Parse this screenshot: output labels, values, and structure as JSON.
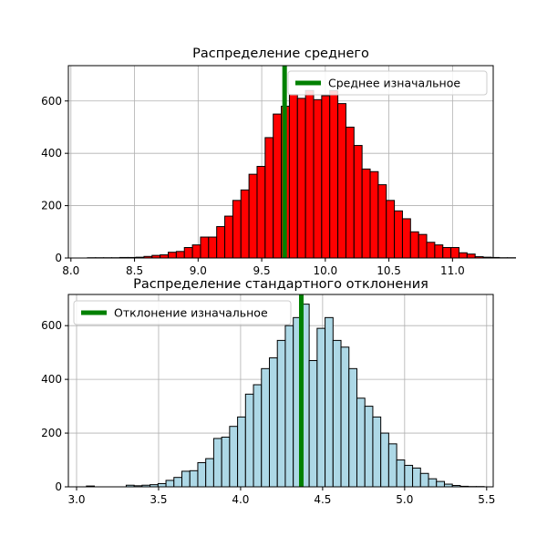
{
  "chart_data": [
    {
      "type": "bar",
      "title": "Распределение среднего",
      "xlabel": "",
      "ylabel": "",
      "xlim": [
        7.98,
        11.32
      ],
      "ylim": [
        0,
        735
      ],
      "xticks": [
        8.0,
        8.5,
        9.0,
        9.5,
        10.0,
        10.5,
        11.0
      ],
      "xtick_labels": [
        "8.0",
        "8.5",
        "9.0",
        "9.5",
        "10.0",
        "10.5",
        "11.0"
      ],
      "yticks": [
        0,
        200,
        400,
        600
      ],
      "ytick_labels": [
        "0",
        "200",
        "400",
        "600"
      ],
      "grid": true,
      "bar_color": "#ff0000",
      "edge_color": "#000000",
      "bin_start": 8.13,
      "bin_width": 0.0635,
      "values": [
        1,
        1,
        1,
        1,
        2,
        2,
        3,
        6,
        10,
        12,
        22,
        25,
        40,
        50,
        80,
        80,
        120,
        160,
        220,
        260,
        320,
        350,
        460,
        550,
        580,
        625,
        610,
        640,
        605,
        620,
        640,
        590,
        500,
        430,
        340,
        330,
        280,
        220,
        180,
        150,
        100,
        90,
        60,
        50,
        40,
        40,
        20,
        15,
        5,
        3,
        2,
        1,
        1
      ],
      "vline": {
        "x": 9.68,
        "color": "#008000",
        "label": "Среднее изначальное"
      },
      "legend_position": "top-right"
    },
    {
      "type": "bar",
      "title": "Распределение стандартного отклонения",
      "xlabel": "",
      "ylabel": "",
      "xlim": [
        2.95,
        5.54
      ],
      "ylim": [
        0,
        716
      ],
      "xticks": [
        3.0,
        3.5,
        4.0,
        4.5,
        5.0,
        5.5
      ],
      "xtick_labels": [
        "3.0",
        "3.5",
        "4.0",
        "4.5",
        "5.0",
        "5.5"
      ],
      "yticks": [
        0,
        200,
        400,
        600
      ],
      "ytick_labels": [
        "0",
        "200",
        "400",
        "600"
      ],
      "grid": true,
      "bar_color": "#add8e6",
      "edge_color": "#000000",
      "bin_start": 3.06,
      "bin_width": 0.0485,
      "values": [
        3,
        0,
        0,
        0,
        0,
        6,
        4,
        6,
        8,
        12,
        24,
        35,
        58,
        60,
        90,
        105,
        180,
        185,
        225,
        260,
        345,
        380,
        440,
        480,
        545,
        600,
        630,
        680,
        470,
        590,
        630,
        545,
        520,
        440,
        330,
        300,
        260,
        200,
        160,
        100,
        80,
        70,
        50,
        30,
        20,
        10,
        5,
        2,
        1,
        1
      ],
      "vline": {
        "x": 4.37,
        "color": "#008000",
        "label": "Отклонение изначальное"
      },
      "legend_position": "top-left"
    }
  ]
}
